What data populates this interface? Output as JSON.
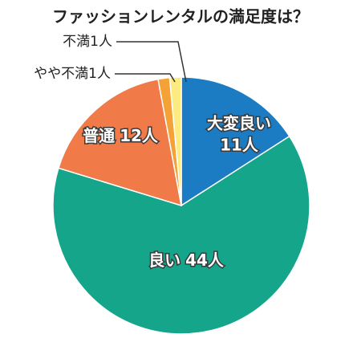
{
  "chart_data": {
    "type": "pie",
    "title": "ファッションレンタルの満足度は？",
    "categories": [
      "大変良い",
      "良い",
      "普通",
      "やや不満",
      "不満"
    ],
    "values": [
      11,
      44,
      12,
      1,
      1
    ],
    "value_labels": [
      "11人",
      "44人",
      "12人",
      "1人",
      "1人"
    ],
    "colors": [
      "#1b7bc3",
      "#14a58a",
      "#f07a48",
      "#f4a236",
      "#fbeb80"
    ]
  }
}
